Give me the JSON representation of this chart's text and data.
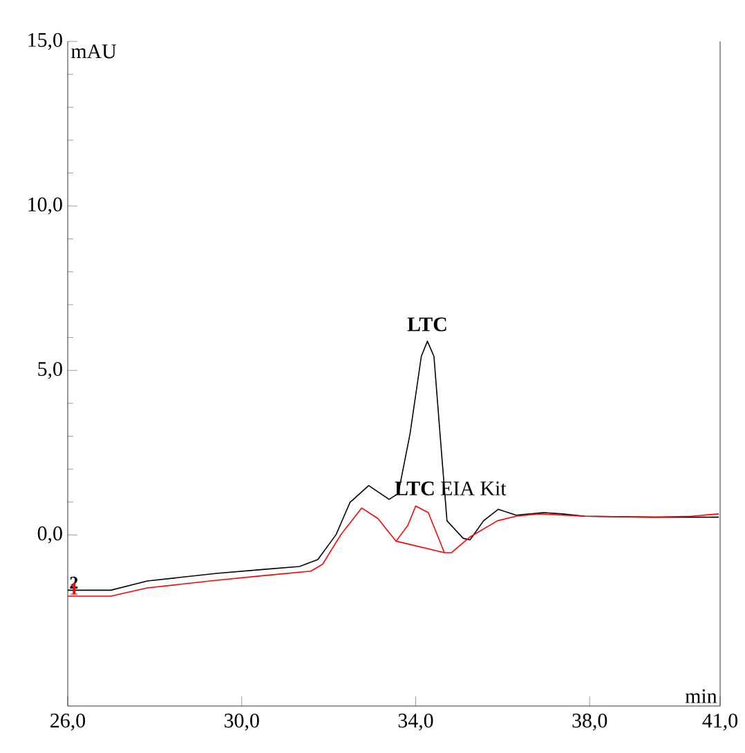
{
  "chart_data": {
    "type": "line",
    "xlabel": "min",
    "ylabel": "mAU",
    "x": [
      26.0,
      26.99,
      27.83,
      29.42,
      30.48,
      31.33,
      31.75,
      32.17,
      32.49,
      32.92,
      33.39,
      33.6,
      33.87,
      34.13,
      34.27,
      34.42,
      34.56,
      34.72,
      35.09,
      35.25,
      35.56,
      35.9,
      36.31,
      36.94,
      37.37,
      37.89,
      39.48,
      40.97
    ],
    "series": [
      {
        "name": "2",
        "color": "#000000",
        "values": [
          -1.68,
          -1.68,
          -1.4,
          -1.17,
          -1.05,
          -0.96,
          -0.75,
          0.01,
          0.99,
          1.5,
          1.08,
          1.26,
          3.07,
          5.43,
          5.89,
          5.43,
          3.07,
          0.43,
          -0.1,
          -0.15,
          0.43,
          0.78,
          0.6,
          0.68,
          0.64,
          0.57,
          0.54,
          0.54
        ]
      },
      {
        "name": "1",
        "color": "#ff0000",
        "x": [
          26.0,
          26.99,
          27.83,
          29.42,
          30.48,
          31.59,
          31.86,
          32.28,
          32.76,
          33.13,
          33.55,
          33.82,
          34.0,
          34.29,
          34.66,
          34.82,
          35.25,
          35.88,
          36.31,
          36.84,
          37.89,
          39.48,
          40.33,
          40.97
        ],
        "values": [
          -1.86,
          -1.86,
          -1.61,
          -1.38,
          -1.24,
          -1.1,
          -0.89,
          0.01,
          0.82,
          0.5,
          -0.19,
          0.29,
          0.88,
          0.68,
          -0.54,
          -0.54,
          -0.06,
          0.43,
          0.57,
          0.64,
          0.57,
          0.54,
          0.57,
          0.64
        ]
      },
      {
        "color": "#ff0000",
        "x": [
          33.55,
          34.66
        ],
        "values": [
          -0.19,
          -0.54
        ]
      }
    ],
    "annotations": [
      {
        "text": "**LTC**",
        "x": 34.27,
        "y": 5.89
      },
      {
        "text": "**LTC** EIA Kit",
        "x": 34.8,
        "y": 0.9
      }
    ],
    "xlim": [
      26,
      41
    ],
    "ylim": [
      -5.2,
      15
    ],
    "xticks": [
      {
        "value": 26,
        "label": "26,0"
      },
      {
        "value": 30,
        "label": "30,0"
      },
      {
        "value": 34,
        "label": "34,0"
      },
      {
        "value": 38,
        "label": "38,0"
      },
      {
        "value": 41,
        "label": "41,0"
      }
    ],
    "yticks": [
      {
        "value": 0,
        "label": "0,0"
      },
      {
        "value": 5,
        "label": "5,0"
      },
      {
        "value": 10,
        "label": "10,0"
      },
      {
        "value": 15,
        "label": "15,0"
      }
    ],
    "grid": false,
    "marker": "none",
    "line_style": "solid"
  }
}
